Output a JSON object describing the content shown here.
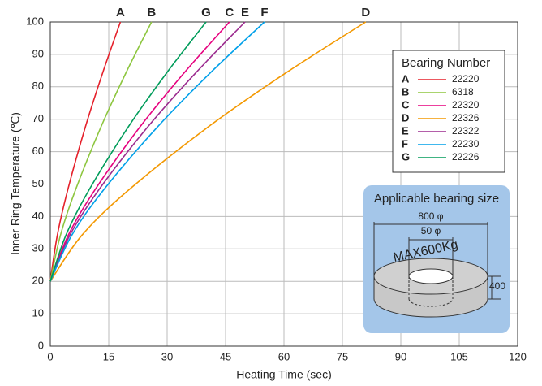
{
  "chart_data": {
    "type": "line",
    "xlabel": "Heating Time  (sec)",
    "ylabel": "Inner Ring Temperature (℃)",
    "xlim": [
      0,
      120
    ],
    "ylim": [
      0,
      100
    ],
    "xticks": [
      0,
      15,
      30,
      45,
      60,
      75,
      90,
      105,
      120
    ],
    "yticks": [
      0,
      10,
      20,
      30,
      40,
      50,
      60,
      70,
      80,
      90,
      100
    ],
    "grid": true,
    "legend_title": "Bearing Number",
    "series": [
      {
        "label": "A",
        "name": "22220",
        "color": "#e5212b",
        "x": [
          0,
          1.8,
          4.5,
          9,
          13.5,
          18
        ],
        "values": [
          20,
          34.2,
          48.3,
          67.6,
          84.5,
          100
        ]
      },
      {
        "label": "B",
        "name": "6318",
        "color": "#8dc63f",
        "x": [
          0,
          2.6,
          6.5,
          13,
          19.5,
          26
        ],
        "values": [
          20,
          34.2,
          48.3,
          67.6,
          84.5,
          100
        ]
      },
      {
        "label": "C",
        "name": "22320",
        "color": "#e6007e",
        "x": [
          0,
          4.6,
          11.5,
          23,
          34.5,
          46
        ],
        "values": [
          20,
          34.2,
          48.3,
          67.6,
          84.5,
          100
        ]
      },
      {
        "label": "D",
        "name": "22326",
        "color": "#f39800",
        "x": [
          0,
          8.1,
          20.25,
          40.5,
          60.75,
          81
        ],
        "values": [
          20,
          34.2,
          48.3,
          67.6,
          84.5,
          100
        ]
      },
      {
        "label": "E",
        "name": "22322",
        "color": "#9b2a8e",
        "x": [
          0,
          5,
          12.5,
          25,
          37.5,
          50
        ],
        "values": [
          20,
          34.2,
          48.3,
          67.6,
          84.5,
          100
        ]
      },
      {
        "label": "F",
        "name": "22230",
        "color": "#00a0e9",
        "x": [
          0,
          5.5,
          13.75,
          27.5,
          41.25,
          55
        ],
        "values": [
          20,
          34.2,
          48.3,
          67.6,
          84.5,
          100
        ]
      },
      {
        "label": "G",
        "name": "22226",
        "color": "#009c5a",
        "x": [
          0,
          4,
          10,
          20,
          30,
          40
        ],
        "values": [
          20,
          34.2,
          48.3,
          67.6,
          84.5,
          100
        ]
      }
    ],
    "inset": {
      "title": "Applicable bearing size",
      "outer": "800 φ",
      "inner": "50 φ",
      "load": "MAX600Kg",
      "height": "400"
    }
  }
}
